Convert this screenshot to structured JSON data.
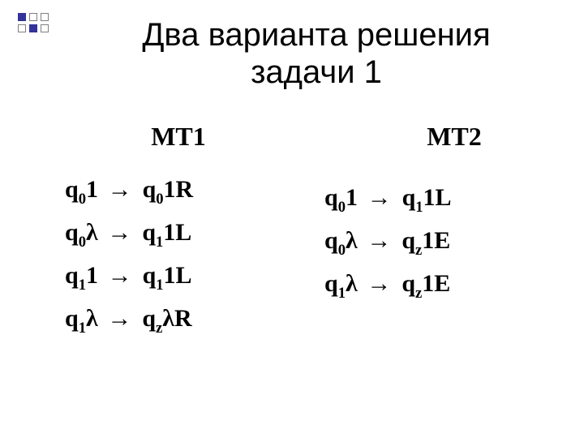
{
  "colors": {
    "accent": "#333399",
    "text": "#000000",
    "background": "#ffffff",
    "bullet_outline": "#808080"
  },
  "bullets": {
    "rows": 2,
    "cols": 3,
    "filled_positions": [
      [
        0,
        0
      ],
      [
        1,
        1
      ]
    ]
  },
  "title": {
    "line1": "Два варианта  решения",
    "line2": "задачи 1",
    "fontsize": 40
  },
  "left": {
    "header": "МТ1",
    "rules": [
      {
        "lhs_state": "q",
        "lhs_state_sub": "0",
        "lhs_sym": "1",
        "rhs_state": "q",
        "rhs_state_sub": "0",
        "rhs_sym": "1",
        "rhs_move": "R"
      },
      {
        "lhs_state": "q",
        "lhs_state_sub": "0",
        "lhs_sym": "λ",
        "rhs_state": "q",
        "rhs_state_sub": "1",
        "rhs_sym": "1",
        "rhs_move": "L"
      },
      {
        "lhs_state": "q",
        "lhs_state_sub": "1",
        "lhs_sym": "1",
        "rhs_state": "q",
        "rhs_state_sub": "1",
        "rhs_sym": "1",
        "rhs_move": "L"
      },
      {
        "lhs_state": "q",
        "lhs_state_sub": "1",
        "lhs_sym": "λ",
        "rhs_state": "q",
        "rhs_state_sub": "z",
        "rhs_sym": "λ",
        "rhs_move": "R"
      }
    ]
  },
  "right": {
    "header": "МТ2",
    "rules": [
      {
        "lhs_state": "q",
        "lhs_state_sub": "0",
        "lhs_sym": "1",
        "rhs_state": "q",
        "rhs_state_sub": "1",
        "rhs_sym": "1",
        "rhs_move": "L"
      },
      {
        "lhs_state": "q",
        "lhs_state_sub": "0",
        "lhs_sym": "λ",
        "rhs_state": "q",
        "rhs_state_sub": "z",
        "rhs_sym": "1",
        "rhs_move": "E"
      },
      {
        "lhs_state": "q",
        "lhs_state_sub": "1",
        "lhs_sym": "λ",
        "rhs_state": "q",
        "rhs_state_sub": "z",
        "rhs_sym": "1",
        "rhs_move": "E"
      }
    ]
  },
  "arrow_glyph": "→",
  "fonts": {
    "title_family": "Arial",
    "body_family": "Times New Roman",
    "header_size": 32,
    "rule_size": 30
  }
}
